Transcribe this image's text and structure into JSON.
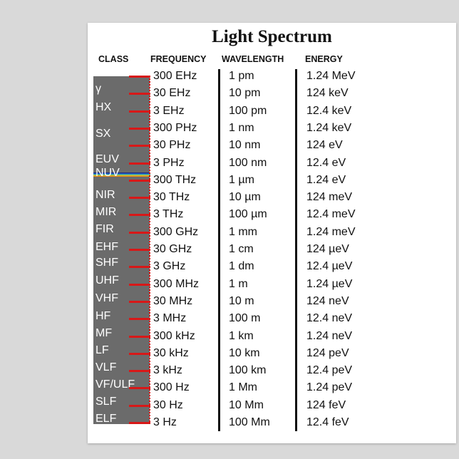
{
  "title": "Light Spectrum",
  "headers": {
    "class": "CLASS",
    "frequency": "FREQUENCY",
    "wavelength": "WAVELENGTH",
    "energy": "ENERGY"
  },
  "classes": [
    "γ",
    "HX",
    "SX",
    "EUV",
    "NUV",
    "NIR",
    "MIR",
    "FIR",
    "EHF",
    "SHF",
    "UHF",
    "VHF",
    "HF",
    "MF",
    "LF",
    "VLF",
    "VF/ULF",
    "SLF",
    "ELF"
  ],
  "rows": [
    {
      "f": "300 EHz",
      "w": "1 pm",
      "e": "1.24 MeV"
    },
    {
      "f": "30 EHz",
      "w": "10 pm",
      "e": "124 keV"
    },
    {
      "f": "3 EHz",
      "w": "100 pm",
      "e": "12.4 keV"
    },
    {
      "f": "300 PHz",
      "w": "1 nm",
      "e": "1.24 keV"
    },
    {
      "f": "30 PHz",
      "w": "10 nm",
      "e": "124 eV"
    },
    {
      "f": "3 PHz",
      "w": "100 nm",
      "e": "12.4 eV"
    },
    {
      "f": "300 THz",
      "w": "1 µm",
      "e": "1.24 eV"
    },
    {
      "f": "30 THz",
      "w": "10 µm",
      "e": "124 meV"
    },
    {
      "f": "3 THz",
      "w": "100 µm",
      "e": "12.4 meV"
    },
    {
      "f": "300 GHz",
      "w": "1 mm",
      "e": "1.24 meV"
    },
    {
      "f": "30 GHz",
      "w": "1 cm",
      "e": "124 µeV"
    },
    {
      "f": "3 GHz",
      "w": "1 dm",
      "e": "12.4 µeV"
    },
    {
      "f": "300 MHz",
      "w": "1 m",
      "e": "1.24 µeV"
    },
    {
      "f": "30 MHz",
      "w": "10 m",
      "e": "124 neV"
    },
    {
      "f": "3 MHz",
      "w": "100 m",
      "e": "12.4 neV"
    },
    {
      "f": "300 kHz",
      "w": "1 km",
      "e": "1.24 neV"
    },
    {
      "f": "30 kHz",
      "w": "10 km",
      "e": "124 peV"
    },
    {
      "f": "3 kHz",
      "w": "100 km",
      "e": "12.4 peV"
    },
    {
      "f": "300 Hz",
      "w": "1 Mm",
      "e": "1.24 peV"
    },
    {
      "f": "30 Hz",
      "w": "10 Mm",
      "e": "124 feV"
    },
    {
      "f": "3 Hz",
      "w": "100 Mm",
      "e": "12.4 feV"
    }
  ],
  "colors": {
    "tick": "#d81818",
    "class_bar": "#6b6b6b"
  }
}
